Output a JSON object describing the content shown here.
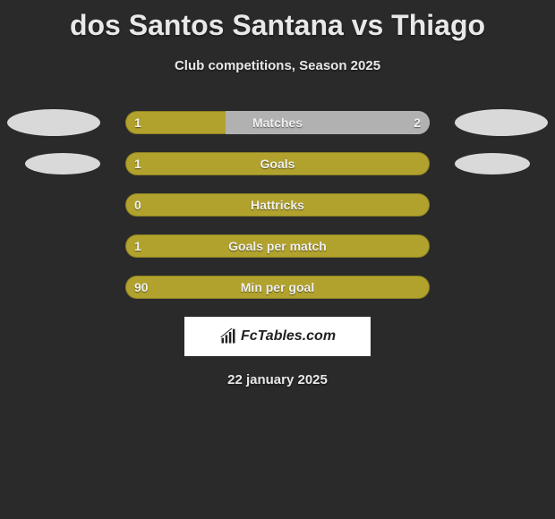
{
  "title": "dos Santos Santana vs Thiago",
  "subtitle": "Club competitions, Season 2025",
  "date": "22 january 2025",
  "brand": "FcTables.com",
  "colors": {
    "background": "#2a2a2a",
    "bar_primary": "#b1a22d",
    "bar_secondary": "#b1b1b1",
    "ellipse": "#d9d9d9",
    "text": "#e8e8e8",
    "badge_bg": "#ffffff",
    "badge_text": "#222222"
  },
  "rows": [
    {
      "label": "Matches",
      "left": "1",
      "right": "2",
      "left_fill_pct": 33,
      "show_right_value": true,
      "left_ellipse": "left-0",
      "right_ellipse": "right-0"
    },
    {
      "label": "Goals",
      "left": "1",
      "right": "",
      "left_fill_pct": 100,
      "show_right_value": false,
      "left_ellipse": "left-1",
      "right_ellipse": "right-1"
    },
    {
      "label": "Hattricks",
      "left": "0",
      "right": "",
      "left_fill_pct": 100,
      "show_right_value": false,
      "left_ellipse": null,
      "right_ellipse": null
    },
    {
      "label": "Goals per match",
      "left": "1",
      "right": "",
      "left_fill_pct": 100,
      "show_right_value": false,
      "left_ellipse": null,
      "right_ellipse": null
    },
    {
      "label": "Min per goal",
      "left": "90",
      "right": "",
      "left_fill_pct": 100,
      "show_right_value": false,
      "left_ellipse": null,
      "right_ellipse": null
    }
  ]
}
